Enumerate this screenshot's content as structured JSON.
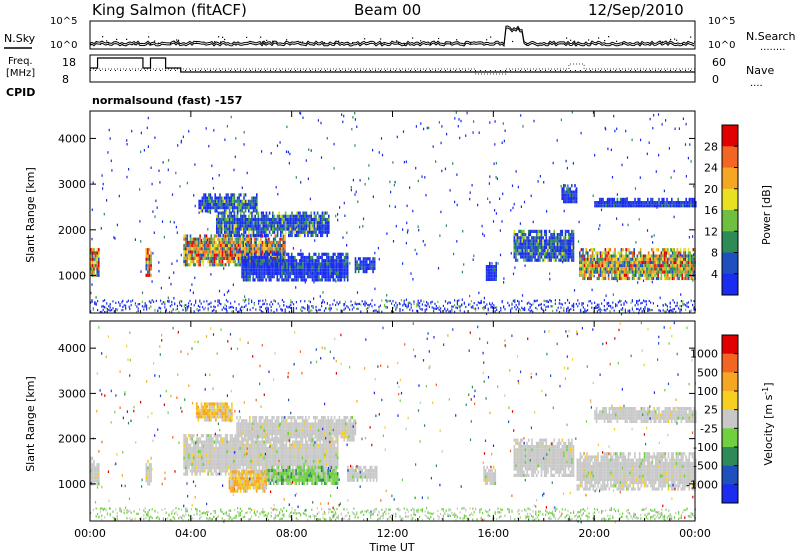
{
  "header": {
    "station": "King Salmon (fitACF)",
    "beam": "Beam 00",
    "date": "12/Sep/2010",
    "program": "normalsound (fast) -157"
  },
  "strip_labels": {
    "nsky": "N.Sky",
    "nsearch": "N.Search",
    "nsearch_dots": "........",
    "freq_line1": "Freq.",
    "freq_line2": "[MHz]",
    "cpid": "CPID",
    "nave": "Nave",
    "nave_dots": "....",
    "noise_ticks": [
      "10^5",
      "10^0"
    ],
    "freq_ticks": [
      "18",
      "8"
    ],
    "nave_ticks": [
      "60",
      "0"
    ]
  },
  "chart_data": [
    {
      "type": "heatmap",
      "title": "",
      "xlabel": "Time UT",
      "ylabel": "Slant Range [km]",
      "xlim": [
        0,
        24
      ],
      "ylim": [
        180,
        4600
      ],
      "x_ticks": [
        "00:00",
        "04:00",
        "08:00",
        "12:00",
        "16:00",
        "20:00",
        "00:00"
      ],
      "y_ticks": [
        "1000",
        "2000",
        "3000",
        "4000"
      ],
      "colorbar": {
        "label": "Power [dB]",
        "ticks": [
          "4",
          "8",
          "12",
          "16",
          "20",
          "24",
          "28"
        ],
        "colors": [
          "#1a2cf0",
          "#2050c0",
          "#2e8b57",
          "#6fbf40",
          "#e8e020",
          "#f5a623",
          "#f26522",
          "#e00000"
        ]
      },
      "regions": [
        {
          "t": [
            0.0,
            0.35
          ],
          "r": [
            1000,
            1600
          ],
          "level": "high"
        },
        {
          "t": [
            2.2,
            2.45
          ],
          "r": [
            1000,
            1600
          ],
          "level": "high"
        },
        {
          "t": [
            3.7,
            7.7
          ],
          "r": [
            1200,
            1900
          ],
          "level": "high"
        },
        {
          "t": [
            4.3,
            6.6
          ],
          "r": [
            2400,
            2800
          ],
          "level": "medium"
        },
        {
          "t": [
            5.0,
            9.5
          ],
          "r": [
            1900,
            2400
          ],
          "level": "medium"
        },
        {
          "t": [
            6.0,
            10.2
          ],
          "r": [
            900,
            1500
          ],
          "level": "low"
        },
        {
          "t": [
            10.5,
            11.3
          ],
          "r": [
            1100,
            1400
          ],
          "level": "low"
        },
        {
          "t": [
            15.7,
            16.1
          ],
          "r": [
            900,
            1300
          ],
          "level": "low"
        },
        {
          "t": [
            16.8,
            19.2
          ],
          "r": [
            1300,
            2000
          ],
          "level": "medium"
        },
        {
          "t": [
            18.7,
            19.3
          ],
          "r": [
            2600,
            3000
          ],
          "level": "low"
        },
        {
          "t": [
            19.4,
            24.0
          ],
          "r": [
            900,
            1600
          ],
          "level": "high"
        },
        {
          "t": [
            20.0,
            24.0
          ],
          "r": [
            2500,
            2700
          ],
          "level": "low"
        }
      ]
    },
    {
      "type": "heatmap",
      "title": "",
      "xlabel": "Time UT",
      "ylabel": "Slant Range [km]",
      "xlim": [
        0,
        24
      ],
      "ylim": [
        180,
        4600
      ],
      "x_ticks": [
        "00:00",
        "04:00",
        "08:00",
        "12:00",
        "16:00",
        "20:00",
        "00:00"
      ],
      "y_ticks": [
        "1000",
        "2000",
        "3000",
        "4000"
      ],
      "colorbar": {
        "label": "Velocity [m s",
        "label_sup": "-1",
        "label_end": "]",
        "ticks": [
          "1000",
          "500",
          "100",
          "25",
          "-25",
          "-100",
          "-500",
          "-1000"
        ],
        "colors": [
          "#1a2cf0",
          "#2050c0",
          "#2e8b57",
          "#6fd040",
          "#c8c8c8",
          "#f5d020",
          "#f5a623",
          "#f26522",
          "#e00000"
        ]
      },
      "regions": [
        {
          "t": [
            0.0,
            0.35
          ],
          "r": [
            1000,
            1600
          ],
          "level": "gray"
        },
        {
          "t": [
            2.2,
            2.45
          ],
          "r": [
            1000,
            1600
          ],
          "level": "gray"
        },
        {
          "t": [
            3.7,
            9.8
          ],
          "r": [
            1200,
            2100
          ],
          "level": "gray"
        },
        {
          "t": [
            5.8,
            10.5
          ],
          "r": [
            2000,
            2500
          ],
          "level": "gray"
        },
        {
          "t": [
            5.5,
            7.0
          ],
          "r": [
            850,
            1300
          ],
          "level": "orange"
        },
        {
          "t": [
            7.0,
            9.8
          ],
          "r": [
            1000,
            1400
          ],
          "level": "green"
        },
        {
          "t": [
            10.2,
            11.4
          ],
          "r": [
            1100,
            1400
          ],
          "level": "gray"
        },
        {
          "t": [
            15.6,
            16.1
          ],
          "r": [
            1000,
            1400
          ],
          "level": "gray"
        },
        {
          "t": [
            16.8,
            19.2
          ],
          "r": [
            1200,
            2000
          ],
          "level": "gray"
        },
        {
          "t": [
            19.3,
            24.0
          ],
          "r": [
            900,
            1700
          ],
          "level": "gray"
        },
        {
          "t": [
            20.0,
            24.0
          ],
          "r": [
            2400,
            2700
          ],
          "level": "gray"
        },
        {
          "t": [
            4.2,
            5.6
          ],
          "r": [
            2400,
            2800
          ],
          "level": "orange"
        }
      ]
    }
  ]
}
